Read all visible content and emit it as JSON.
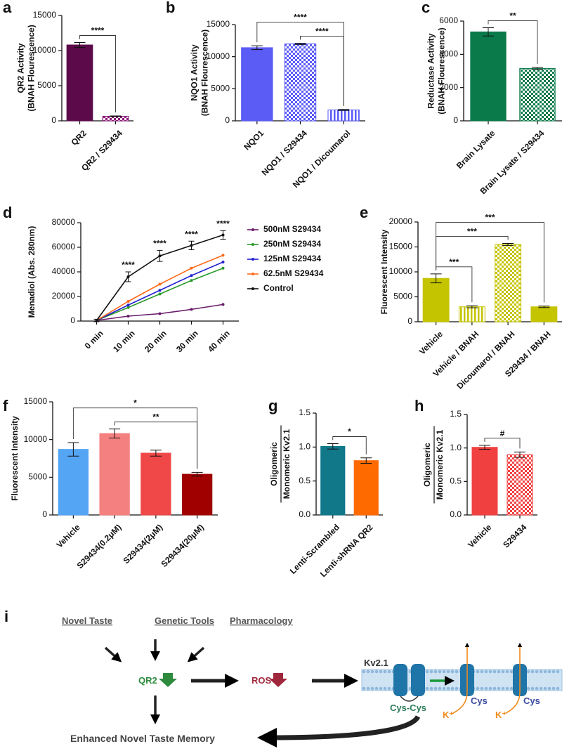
{
  "chart_data": [
    {
      "panel": "a",
      "type": "bar",
      "ylabel": [
        "QR2 Activity",
        "(BNAH Flourescence)"
      ],
      "categories": [
        "QR2",
        "QR2 / S29434"
      ],
      "values": [
        10800,
        650
      ],
      "errors": [
        350,
        50
      ],
      "colors": [
        "#5c0a4a",
        "#8c1a7a"
      ],
      "patterns": [
        "solid",
        "checker"
      ],
      "ylim": [
        0,
        15000
      ],
      "yticks": [
        0,
        5000,
        10000,
        15000
      ],
      "brackets": [
        {
          "from": 0,
          "to": 1,
          "label": "****"
        }
      ]
    },
    {
      "panel": "b",
      "type": "bar",
      "ylabel": [
        "NQO1 Activity",
        "(BNAH Flourescence)"
      ],
      "categories": [
        "NQO1",
        "NQO1 / S29434",
        "NQO1 / Dicoumarol"
      ],
      "values": [
        11400,
        12000,
        1700
      ],
      "errors": [
        300,
        100,
        80
      ],
      "colors": [
        "#5b5bf5",
        "#5b5bf5",
        "#5b5bf5"
      ],
      "patterns": [
        "solid",
        "checker",
        "vstripe"
      ],
      "ylim": [
        0,
        15000
      ],
      "yticks": [
        0,
        5000,
        10000,
        15000
      ],
      "brackets": [
        {
          "from": 1,
          "to": 2,
          "label": "****"
        },
        {
          "from": 0,
          "to": 2,
          "label": "****"
        }
      ]
    },
    {
      "panel": "c",
      "type": "bar",
      "ylabel": [
        "Reductase Activity",
        "(BNAH Flourescence)"
      ],
      "categories": [
        "Brain Lysate",
        "Brain Lysate / S29434"
      ],
      "values": [
        5350,
        3150
      ],
      "errors": [
        250,
        60
      ],
      "colors": [
        "#0b7a4a",
        "#0b7a4a"
      ],
      "patterns": [
        "solid",
        "checker"
      ],
      "ylim": [
        0,
        6000
      ],
      "yticks": [
        0,
        2000,
        4000,
        6000
      ],
      "brackets": [
        {
          "from": 0,
          "to": 1,
          "label": "**"
        }
      ]
    },
    {
      "panel": "d",
      "type": "line",
      "ylabel": [
        "Menadiol (Abs. 280nm)"
      ],
      "categories": [
        "0 min",
        "10 min",
        "20 min",
        "30 min",
        "40 min"
      ],
      "ylim": [
        0,
        80000
      ],
      "yticks": [
        0,
        20000,
        40000,
        60000,
        80000
      ],
      "series": [
        {
          "name": "500nM S29434",
          "color": "#6a1b6a",
          "values": [
            500,
            4000,
            6000,
            9500,
            13500
          ]
        },
        {
          "name": "250nM S29434",
          "color": "#2a9a2a",
          "values": [
            500,
            11000,
            22000,
            33000,
            43000
          ]
        },
        {
          "name": "125nM S29434",
          "color": "#2020d0",
          "values": [
            500,
            13000,
            25000,
            37000,
            48000
          ]
        },
        {
          "name": "62.5nM S29434",
          "color": "#ff6a1a",
          "values": [
            500,
            16000,
            30000,
            43000,
            53500
          ]
        },
        {
          "name": "Control",
          "color": "#111111",
          "values": [
            500,
            36000,
            53000,
            61500,
            70000
          ],
          "errors": [
            1000,
            4000,
            4500,
            3500,
            3500
          ]
        }
      ],
      "annotations": [
        null,
        "****",
        "****",
        "****",
        "****"
      ]
    },
    {
      "panel": "e",
      "type": "bar",
      "ylabel": [
        "Fluorescent Intensity"
      ],
      "categories": [
        "Vehicle",
        "Vehicle / BNAH",
        "Dicoumarol / BNAH",
        "S29434 / BNAH"
      ],
      "values": [
        8700,
        3000,
        15500,
        3000
      ],
      "errors": [
        900,
        200,
        200,
        150
      ],
      "colors": [
        "#c4c400",
        "#c4c400",
        "#c4c400",
        "#c4c400"
      ],
      "patterns": [
        "solid",
        "vstripe",
        "checker",
        "solid"
      ],
      "ylim": [
        0,
        20000
      ],
      "yticks": [
        0,
        5000,
        10000,
        15000,
        20000
      ],
      "brackets": [
        {
          "from": 0,
          "to": 1,
          "label": "***"
        },
        {
          "from": 0,
          "to": 2,
          "label": "***"
        },
        {
          "from": 0,
          "to": 3,
          "label": "***"
        }
      ]
    },
    {
      "panel": "f",
      "type": "bar",
      "ylabel": [
        "Fluorescent Intensity"
      ],
      "categories": [
        "Vehicle",
        "S29434(0.2μM)",
        "S29434(2μM)",
        "S29434(20μM)"
      ],
      "values": [
        8700,
        10800,
        8200,
        5400
      ],
      "errors": [
        900,
        600,
        400,
        250
      ],
      "colors": [
        "#55a5f5",
        "#f48080",
        "#f04848",
        "#a00000"
      ],
      "patterns": [
        "solid",
        "solid",
        "solid",
        "solid"
      ],
      "ylim": [
        0,
        15000
      ],
      "yticks": [
        0,
        5000,
        10000,
        15000
      ],
      "brackets": [
        {
          "from": 1,
          "to": 3,
          "label": "**"
        },
        {
          "from": 0,
          "to": 3,
          "label": "*"
        }
      ]
    },
    {
      "panel": "g",
      "type": "bar",
      "ylabel": [
        "Oligomeric",
        "Monomeric Kv2.1"
      ],
      "fraction": true,
      "categories": [
        "Lenti-Scrambled",
        "Lenti-shRNA QR2"
      ],
      "values": [
        1.01,
        0.8
      ],
      "errors": [
        0.04,
        0.04
      ],
      "colors": [
        "#11788a",
        "#ff6a00"
      ],
      "patterns": [
        "solid",
        "solid"
      ],
      "ylim": [
        0,
        1.5
      ],
      "yticks": [
        {
          "value": 0,
          "label": "0.0"
        },
        0.5,
        {
          "value": 1,
          "label": "1.0"
        },
        1.5
      ],
      "brackets": [
        {
          "from": 0,
          "to": 1,
          "label": "*"
        }
      ]
    },
    {
      "panel": "h",
      "type": "bar",
      "ylabel": [
        "Oligomeric",
        "Monomeric Kv2.1"
      ],
      "fraction": true,
      "categories": [
        "Vehicle",
        "S29434"
      ],
      "values": [
        1.01,
        0.9
      ],
      "errors": [
        0.03,
        0.04
      ],
      "colors": [
        "#f04040",
        "#f04040"
      ],
      "patterns": [
        "solid",
        "checker"
      ],
      "ylim": [
        0,
        1.5
      ],
      "yticks": [
        {
          "value": 0,
          "label": "0.0"
        },
        0.5,
        {
          "value": 1,
          "label": "1.0"
        },
        1.5
      ],
      "brackets": [
        {
          "from": 0,
          "to": 1,
          "label": "#"
        }
      ]
    }
  ],
  "diagram": {
    "panel": "i",
    "sources": [
      "Novel Taste",
      "Genetic Tools",
      "Pharmacology"
    ],
    "qr2": "QR2",
    "ros": "ROS",
    "channel": "Kv2.1",
    "cyscys": "Cys-Cys",
    "cys": [
      "Cys",
      "Cys"
    ],
    "potassium": [
      "K⁺",
      "K⁺"
    ],
    "outcome": "Enhanced Novel Taste Memory"
  }
}
